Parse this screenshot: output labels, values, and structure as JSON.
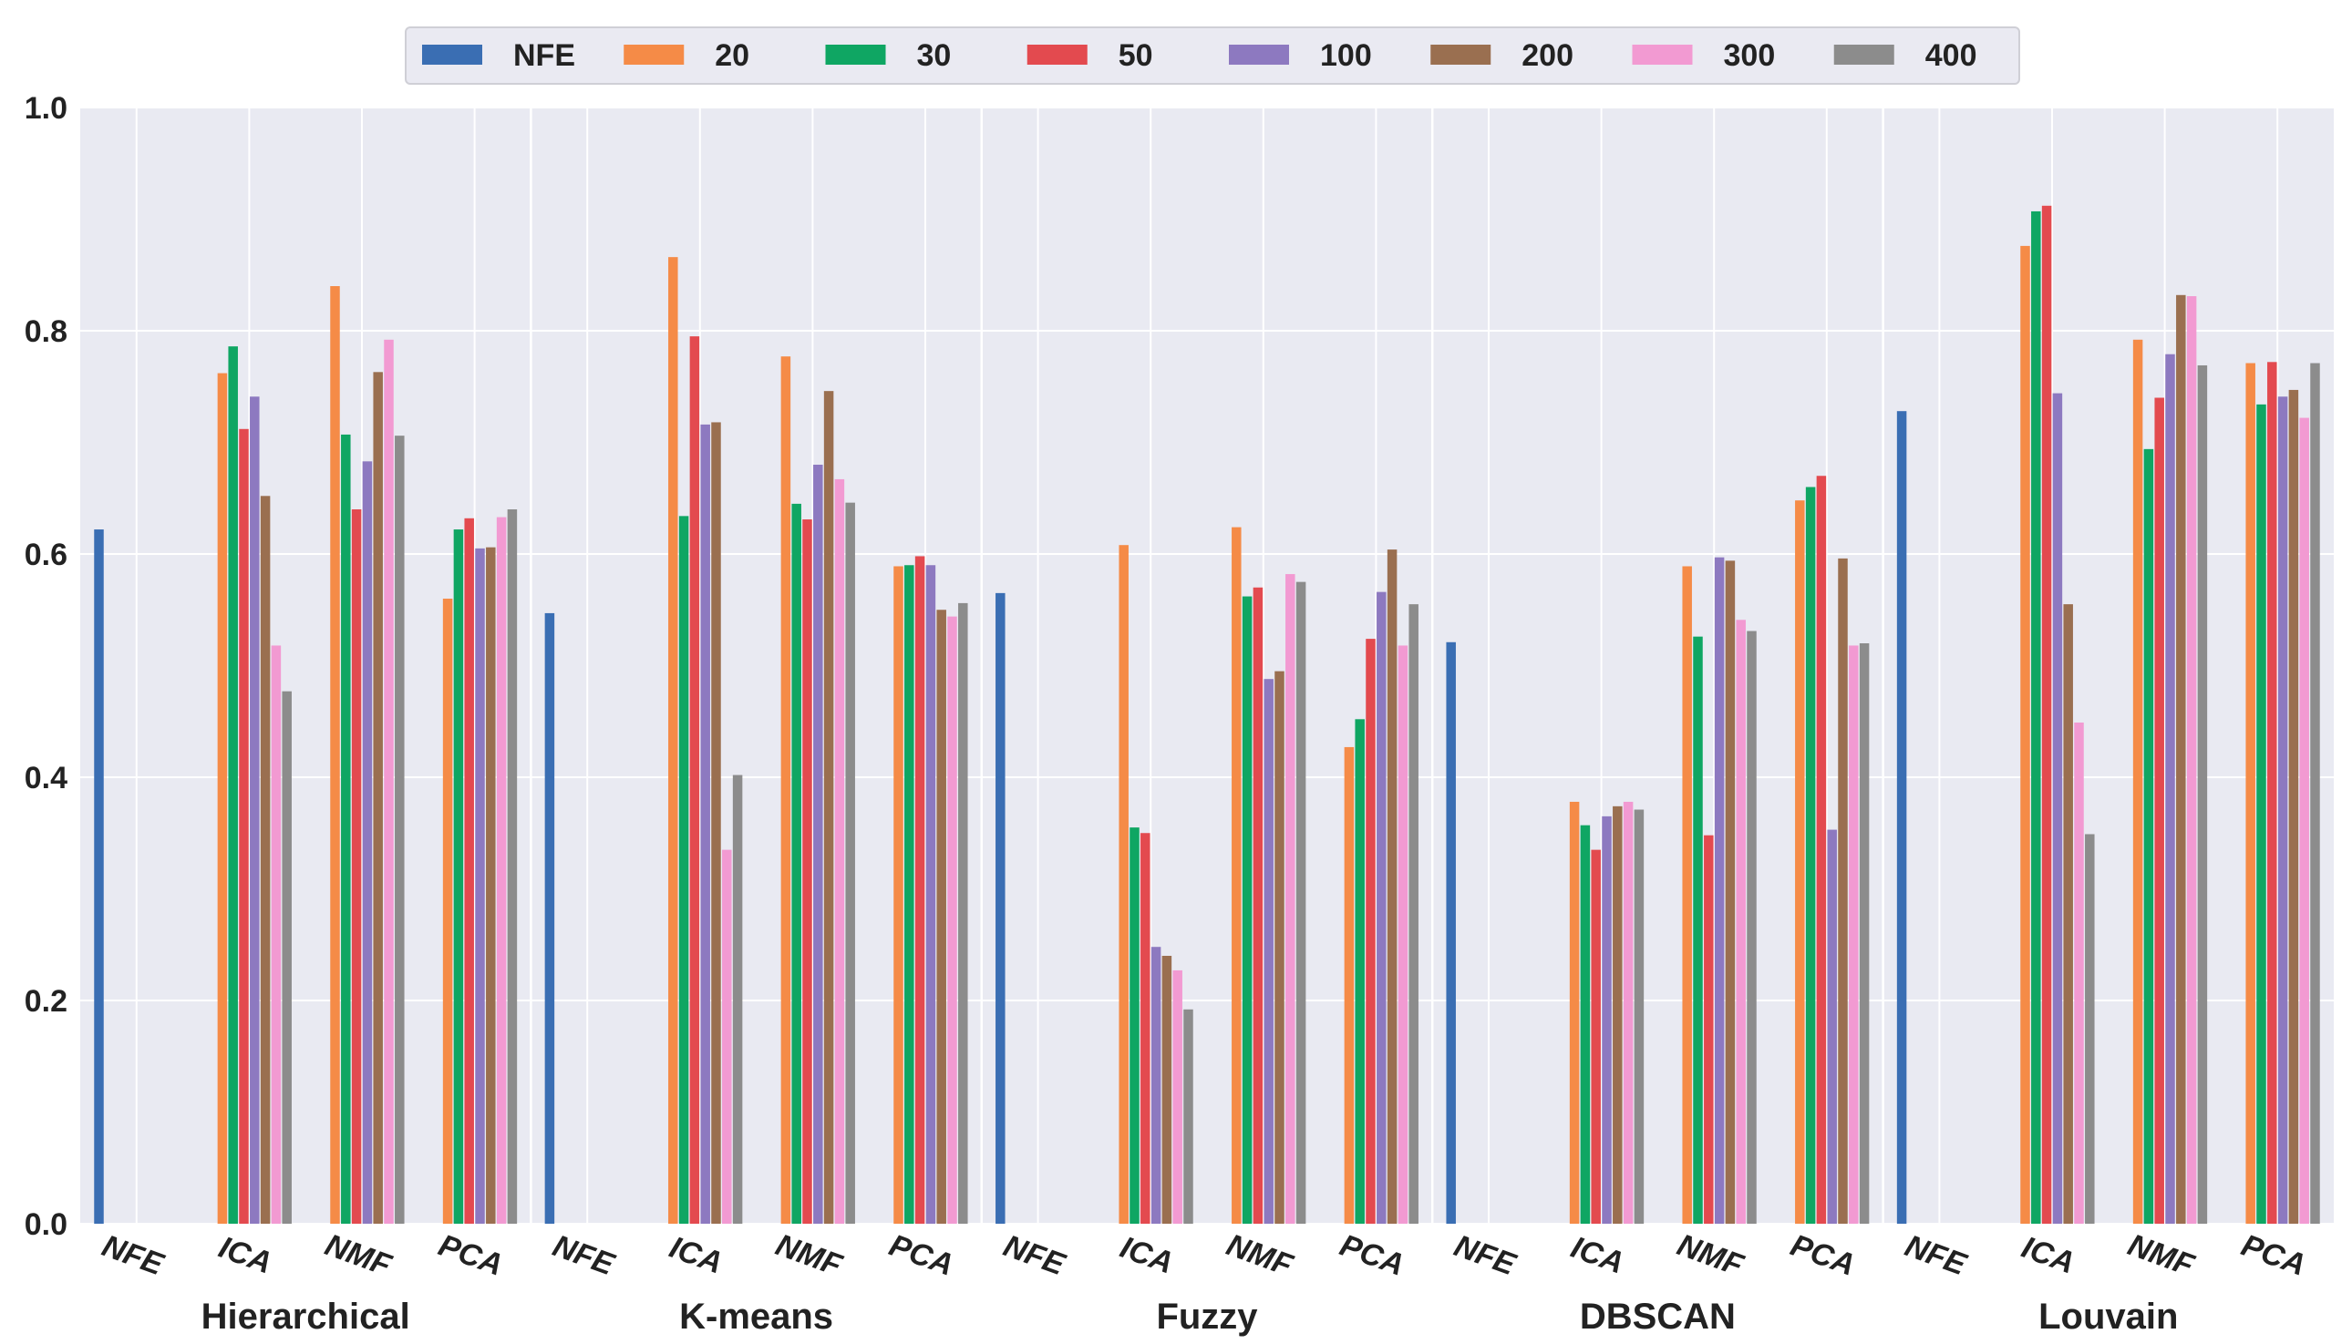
{
  "chart_data": {
    "type": "bar",
    "title": "",
    "xlabel": "",
    "ylabel": "",
    "ylim": [
      0.0,
      1.0
    ],
    "yticks": [
      "0.0",
      "0.2",
      "0.4",
      "0.6",
      "0.8",
      "1.0"
    ],
    "grid": true,
    "legend_position": "top-center",
    "series": [
      {
        "name": "NFE",
        "color": "#3a6eb3"
      },
      {
        "name": "20",
        "color": "#f58b47"
      },
      {
        "name": "30",
        "color": "#0fa663"
      },
      {
        "name": "50",
        "color": "#e34a4f"
      },
      {
        "name": "100",
        "color": "#8d79c0"
      },
      {
        "name": "200",
        "color": "#9a6f50"
      },
      {
        "name": "300",
        "color": "#f29ad2"
      },
      {
        "name": "400",
        "color": "#8c8c8c"
      }
    ],
    "groups": [
      {
        "name": "Hierarchical",
        "categories": [
          {
            "label": "NFE",
            "values": [
              0.622
            ]
          },
          {
            "label": "ICA",
            "values": [
              null,
              0.762,
              0.786,
              0.712,
              0.741,
              0.652,
              0.518,
              0.477
            ]
          },
          {
            "label": "NMF",
            "values": [
              null,
              0.84,
              0.707,
              0.64,
              0.683,
              0.763,
              0.792,
              0.706
            ]
          },
          {
            "label": "PCA",
            "values": [
              null,
              0.56,
              0.622,
              0.632,
              0.605,
              0.606,
              0.633,
              0.64
            ]
          }
        ]
      },
      {
        "name": "K-means",
        "categories": [
          {
            "label": "NFE",
            "values": [
              0.547
            ]
          },
          {
            "label": "ICA",
            "values": [
              null,
              0.866,
              0.634,
              0.795,
              0.716,
              0.718,
              0.335,
              0.402
            ]
          },
          {
            "label": "NMF",
            "values": [
              null,
              0.777,
              0.645,
              0.631,
              0.68,
              0.746,
              0.667,
              0.646
            ]
          },
          {
            "label": "PCA",
            "values": [
              null,
              0.589,
              0.59,
              0.598,
              0.59,
              0.55,
              0.544,
              0.556
            ]
          }
        ]
      },
      {
        "name": "Fuzzy",
        "categories": [
          {
            "label": "NFE",
            "values": [
              0.565
            ]
          },
          {
            "label": "ICA",
            "values": [
              null,
              0.608,
              0.355,
              0.35,
              0.248,
              0.24,
              0.227,
              0.192
            ]
          },
          {
            "label": "NMF",
            "values": [
              null,
              0.624,
              0.562,
              0.57,
              0.488,
              0.495,
              0.582,
              0.575
            ]
          },
          {
            "label": "PCA",
            "values": [
              null,
              0.427,
              0.452,
              0.524,
              0.566,
              0.604,
              0.518,
              0.555
            ]
          }
        ]
      },
      {
        "name": "DBSCAN",
        "categories": [
          {
            "label": "NFE",
            "values": [
              0.521
            ]
          },
          {
            "label": "ICA",
            "values": [
              null,
              0.378,
              0.357,
              0.335,
              0.365,
              0.374,
              0.378,
              0.371
            ]
          },
          {
            "label": "NMF",
            "values": [
              null,
              0.589,
              0.526,
              0.348,
              0.597,
              0.594,
              0.541,
              0.531
            ]
          },
          {
            "label": "PCA",
            "values": [
              null,
              0.648,
              0.66,
              0.67,
              0.353,
              0.596,
              0.518,
              0.52
            ]
          }
        ]
      },
      {
        "name": "Louvain",
        "categories": [
          {
            "label": "NFE",
            "values": [
              0.728
            ]
          },
          {
            "label": "ICA",
            "values": [
              null,
              0.876,
              0.907,
              0.912,
              0.744,
              0.555,
              0.449,
              0.349
            ]
          },
          {
            "label": "NMF",
            "values": [
              null,
              0.792,
              0.694,
              0.74,
              0.779,
              0.832,
              0.831,
              0.769
            ]
          },
          {
            "label": "PCA",
            "values": [
              null,
              0.771,
              0.734,
              0.772,
              0.741,
              0.747,
              0.722,
              0.771
            ]
          }
        ]
      }
    ]
  }
}
